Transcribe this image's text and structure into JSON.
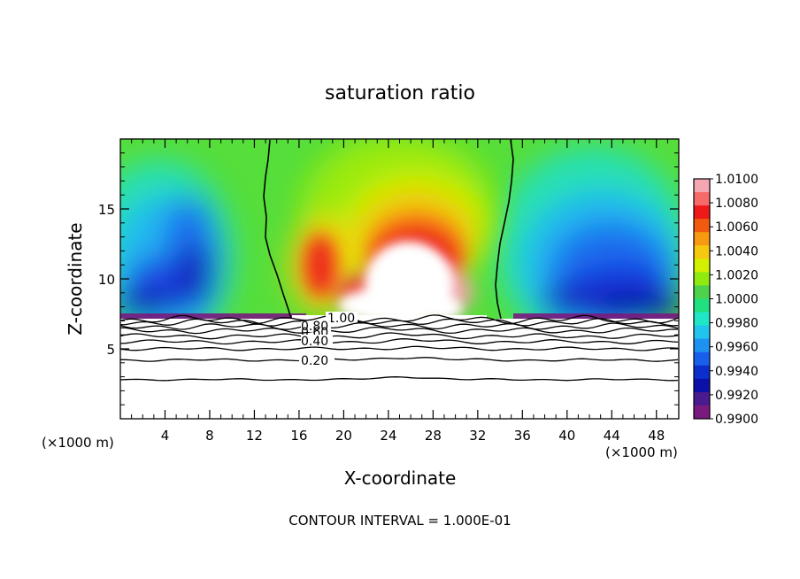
{
  "chart_data": {
    "type": "heatmap",
    "title": "saturation ratio",
    "xlabel": "X-coordinate",
    "ylabel": "Z-coordinate",
    "x_unit": "(×1000 m)",
    "x_unit_right": "(×1000 m)",
    "xlim": [
      0,
      50
    ],
    "ylim": [
      0,
      20
    ],
    "x_ticks": [
      4,
      8,
      12,
      16,
      20,
      24,
      28,
      32,
      36,
      40,
      44,
      48
    ],
    "y_ticks": [
      5,
      10,
      15
    ],
    "colorbar": {
      "min": 0.99,
      "max": 1.01,
      "labels": [
        "1.0100",
        "1.0080",
        "1.0060",
        "1.0040",
        "1.0020",
        "1.0000",
        "0.9980",
        "0.9960",
        "0.9940",
        "0.9920",
        "0.9900"
      ],
      "colors": [
        "#f4a6b2",
        "#f66a6a",
        "#ee1a1a",
        "#f25a10",
        "#f89a10",
        "#f6c810",
        "#d2f000",
        "#90ea10",
        "#4ed24e",
        "#22e080",
        "#20e6c8",
        "#20c4ee",
        "#1e92f0",
        "#1860ec",
        "#0c2ecc",
        "#0a10a8",
        "#4a1a90",
        "#7a1a7e"
      ]
    },
    "contour_labels": [
      "1.00",
      "0.80",
      "0.60",
      "0.40",
      "0.20"
    ],
    "contour_levels_z": [
      2.8,
      4.2,
      5.0,
      5.5,
      5.9,
      6.3,
      6.6,
      6.9,
      7.1
    ],
    "footer": "CONTOUR INTERVAL =  1.000E-01"
  }
}
